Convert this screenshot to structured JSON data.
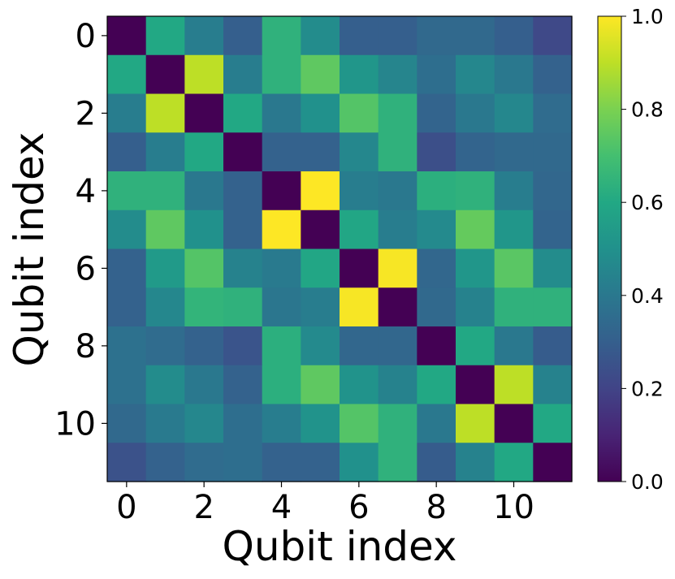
{
  "chart_data": {
    "type": "heatmap",
    "colormap": "viridis",
    "xlabel": "Qubit index",
    "ylabel": "Qubit index",
    "x": [
      0,
      1,
      2,
      3,
      4,
      5,
      6,
      7,
      8,
      9,
      10,
      11
    ],
    "y": [
      0,
      1,
      2,
      3,
      4,
      5,
      6,
      7,
      8,
      9,
      10,
      11
    ],
    "xticks": [
      "0",
      "2",
      "4",
      "6",
      "8",
      "10"
    ],
    "yticks": [
      "0",
      "2",
      "4",
      "6",
      "8",
      "10"
    ],
    "clim": [
      0.0,
      1.0
    ],
    "colorbar_ticks": [
      "0.0",
      "0.2",
      "0.4",
      "0.6",
      "0.8",
      "1.0"
    ],
    "values": [
      [
        0.0,
        0.6,
        0.42,
        0.3,
        0.64,
        0.48,
        0.3,
        0.3,
        0.34,
        0.34,
        0.3,
        0.22
      ],
      [
        0.6,
        0.0,
        0.9,
        0.42,
        0.64,
        0.75,
        0.52,
        0.45,
        0.36,
        0.46,
        0.4,
        0.31
      ],
      [
        0.42,
        0.9,
        0.0,
        0.6,
        0.4,
        0.5,
        0.73,
        0.64,
        0.32,
        0.4,
        0.46,
        0.35
      ],
      [
        0.3,
        0.42,
        0.6,
        0.0,
        0.31,
        0.31,
        0.46,
        0.64,
        0.24,
        0.32,
        0.34,
        0.34
      ],
      [
        0.64,
        0.64,
        0.4,
        0.31,
        0.0,
        1.0,
        0.42,
        0.4,
        0.63,
        0.64,
        0.42,
        0.33
      ],
      [
        0.48,
        0.75,
        0.5,
        0.31,
        1.0,
        0.0,
        0.59,
        0.42,
        0.47,
        0.76,
        0.52,
        0.32
      ],
      [
        0.31,
        0.54,
        0.73,
        0.44,
        0.41,
        0.59,
        0.0,
        0.99,
        0.33,
        0.52,
        0.74,
        0.48
      ],
      [
        0.31,
        0.46,
        0.65,
        0.64,
        0.39,
        0.42,
        0.99,
        0.0,
        0.34,
        0.44,
        0.64,
        0.64
      ],
      [
        0.37,
        0.35,
        0.31,
        0.26,
        0.63,
        0.47,
        0.33,
        0.33,
        0.0,
        0.6,
        0.4,
        0.29
      ],
      [
        0.37,
        0.48,
        0.4,
        0.31,
        0.63,
        0.75,
        0.51,
        0.44,
        0.6,
        0.0,
        0.9,
        0.44
      ],
      [
        0.34,
        0.41,
        0.46,
        0.36,
        0.42,
        0.51,
        0.73,
        0.64,
        0.4,
        0.9,
        0.0,
        0.6
      ],
      [
        0.25,
        0.31,
        0.35,
        0.36,
        0.31,
        0.31,
        0.5,
        0.64,
        0.29,
        0.44,
        0.6,
        0.0
      ]
    ]
  }
}
